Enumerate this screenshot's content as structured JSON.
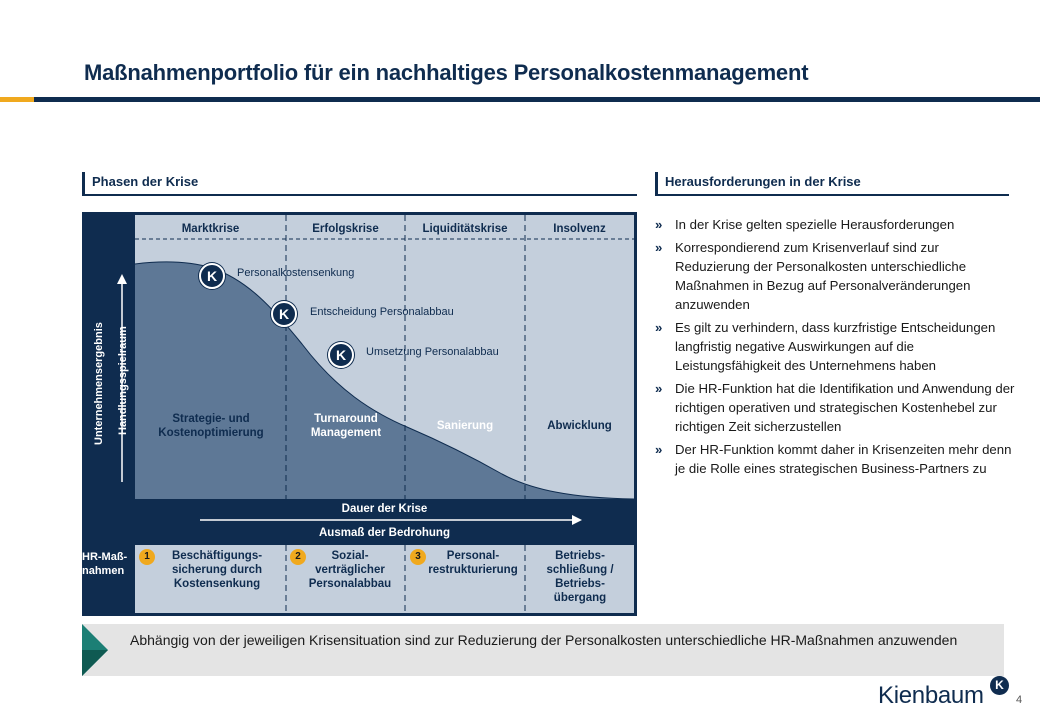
{
  "title": "Maßnahmenportfolio für ein nachhaltiges Personalkostenmanagement",
  "colors": {
    "navy": "#0f2c4f",
    "accent": "#f0a91e",
    "light_panel": "#c4cfdc",
    "curve_fill": "#5e7896",
    "box_grey": "#e4e4e4"
  },
  "left_section": {
    "heading": "Phasen der Krise",
    "phases": [
      "Marktkrise",
      "Erfolgskrise",
      "Liquiditätskrise",
      "Insolvenz"
    ],
    "phase_actions": [
      "Strategie- und Kostenoptimierung",
      "Turnaround Management",
      "Sanierung",
      "Abwicklung"
    ],
    "y_axis_outer": "Unternehmensergebnis",
    "y_axis_inner": "Handlungsspielraum",
    "milestones": [
      "Personalkostensenkung",
      "Entscheidung Personalabbau",
      "Umsetzung Personalabbau"
    ],
    "k_symbol": "K",
    "x_axis_1": "Dauer der Krise",
    "x_axis_2": "Ausmaß der Bedrohung",
    "hr_label": "HR-Maß-nahmen",
    "measures": [
      {
        "num": "1",
        "text": "Beschäftigungs-sicherung durch Kostensenkung"
      },
      {
        "num": "2",
        "text": "Sozial-verträglicher Personalabbau"
      },
      {
        "num": "3",
        "text": "Personal-restrukturierung"
      },
      {
        "num": "",
        "text": "Betriebs-schließung / Betriebs-übergang"
      }
    ]
  },
  "right_section": {
    "heading": "Herausforderungen in der Krise",
    "bullet_marker": "»",
    "bullets": [
      "In der Krise gelten spezielle Herausforderungen",
      "Korrespondierend zum Krisenverlauf sind zur Reduzierung der Personalkosten unterschiedliche Maßnahmen in Bezug auf Personalveränderungen anzuwenden",
      "Es gilt zu verhindern, dass kurzfristige Entscheidungen langfristig negative Auswirkungen auf die Leistungsfähigkeit des Unternehmens haben",
      "Die HR-Funktion hat die Identifikation und Anwendung der richtigen operativen und strategischen Kostenhebel zur richtigen Zeit sicherzustellen",
      "Der HR-Funktion kommt daher in Krisenzeiten mehr denn je die Rolle eines strategischen Business-Partners zu"
    ]
  },
  "conclusion": "Abhängig von der jeweiligen Krisensituation sind zur Reduzierung der Personalkosten unterschiedliche HR-Maßnahmen anzuwenden",
  "logo": {
    "text": "Kienbaum",
    "mark": "K"
  },
  "page_number": "4"
}
